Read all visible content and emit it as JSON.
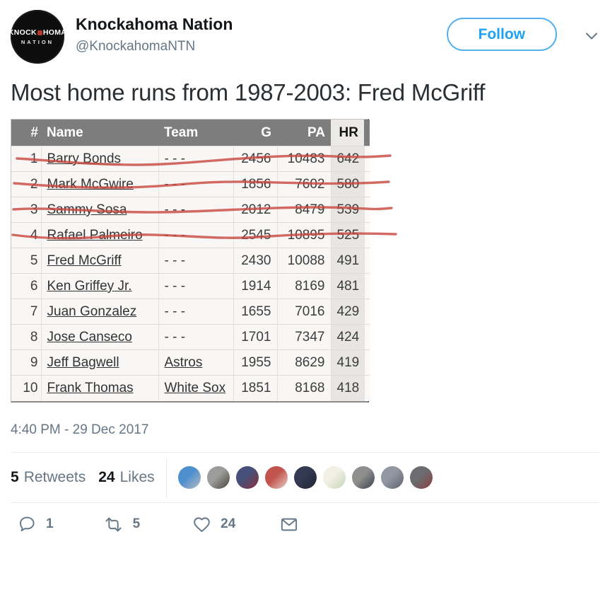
{
  "header": {
    "name": "Knockahoma Nation",
    "handle": "@KnockahomaNTN",
    "follow_label": "Follow",
    "avatar": {
      "line1a": "KNOCK",
      "line1b": "HOMA",
      "line2": "NATION"
    }
  },
  "tweet_text": "Most home runs from 1987-2003: Fred McGriff",
  "table": {
    "headers": {
      "rank": "#",
      "name": "Name",
      "team": "Team",
      "g": "G",
      "pa": "PA",
      "hr": "HR"
    },
    "rows": [
      {
        "rank": "1",
        "name": "Barry Bonds",
        "team": "- - -",
        "team_link": false,
        "g": "2456",
        "pa": "10483",
        "hr": "642",
        "struck": true
      },
      {
        "rank": "2",
        "name": "Mark McGwire",
        "team": "- - -",
        "team_link": false,
        "g": "1856",
        "pa": "7602",
        "hr": "580",
        "struck": true
      },
      {
        "rank": "3",
        "name": "Sammy Sosa",
        "team": "- - -",
        "team_link": false,
        "g": "2012",
        "pa": "8479",
        "hr": "539",
        "struck": true
      },
      {
        "rank": "4",
        "name": "Rafael Palmeiro",
        "team": "- - -",
        "team_link": false,
        "g": "2545",
        "pa": "10895",
        "hr": "525",
        "struck": true
      },
      {
        "rank": "5",
        "name": "Fred McGriff",
        "team": "- - -",
        "team_link": false,
        "g": "2430",
        "pa": "10088",
        "hr": "491",
        "struck": false
      },
      {
        "rank": "6",
        "name": "Ken Griffey Jr.",
        "team": "- - -",
        "team_link": false,
        "g": "1914",
        "pa": "8169",
        "hr": "481",
        "struck": false
      },
      {
        "rank": "7",
        "name": "Juan Gonzalez",
        "team": "- - -",
        "team_link": false,
        "g": "1655",
        "pa": "7016",
        "hr": "429",
        "struck": false
      },
      {
        "rank": "8",
        "name": "Jose Canseco",
        "team": "- - -",
        "team_link": false,
        "g": "1701",
        "pa": "7347",
        "hr": "424",
        "struck": false
      },
      {
        "rank": "9",
        "name": "Jeff Bagwell",
        "team": "Astros",
        "team_link": true,
        "g": "1955",
        "pa": "8629",
        "hr": "419",
        "struck": false
      },
      {
        "rank": "10",
        "name": "Frank Thomas",
        "team": "White Sox",
        "team_link": true,
        "g": "1851",
        "pa": "8168",
        "hr": "418",
        "struck": false
      }
    ]
  },
  "timestamp": "4:40 PM - 29 Dec 2017",
  "stats": {
    "retweet_count": "5",
    "retweets_label": "Retweets",
    "like_count": "24",
    "likes_label": "Likes",
    "liker_avatars": [
      {
        "c1": "#4e8fd0",
        "c2": "#b8bcc0"
      },
      {
        "c1": "#9c9c9a",
        "c2": "#4a443c"
      },
      {
        "c1": "#46507a",
        "c2": "#8c3038"
      },
      {
        "c1": "#c2544e",
        "c2": "#e5d3c8"
      },
      {
        "c1": "#343a52",
        "c2": "#1e2230"
      },
      {
        "c1": "#f2efe4",
        "c2": "#c3d6b4"
      },
      {
        "c1": "#8f8f8d",
        "c2": "#39404e"
      },
      {
        "c1": "#9298a2",
        "c2": "#5c616d"
      },
      {
        "c1": "#6a6c70",
        "c2": "#8d3e3e"
      }
    ]
  },
  "actions": {
    "reply_count": "1",
    "retweet_count": "5",
    "like_count": "24"
  },
  "colors": {
    "accent_blue": "#1DA1F2",
    "muted_gray": "#657786",
    "divider": "#e6ecf0",
    "table_header_bg": "#7d7d7d",
    "hr_column_bg": "#e8e6e2",
    "strike_red": "#c8463e"
  }
}
